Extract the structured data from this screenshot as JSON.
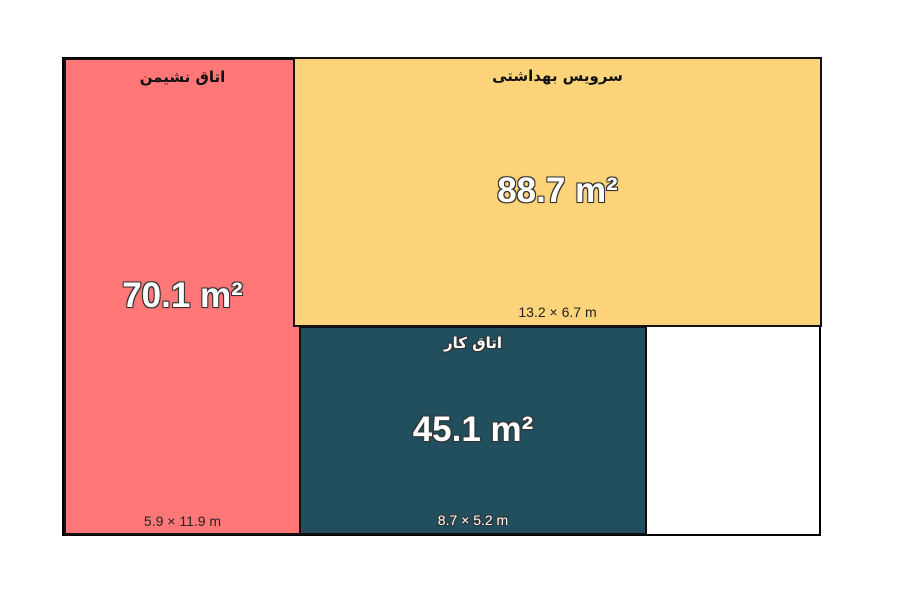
{
  "rooms": {
    "living": {
      "name": "اتاق نشیمن",
      "area": "70.1 m²",
      "dims": "5.9 × 11.9 m",
      "color": "#ff7777"
    },
    "service": {
      "name": "سرویس بهداشتی",
      "area": "88.7 m²",
      "dims": "13.2 × 6.7 m",
      "color": "#fdd479"
    },
    "work": {
      "name": "اتاق کار",
      "area": "45.1 m²",
      "dims": "8.7 × 5.2 m",
      "color": "#214f5e"
    }
  }
}
